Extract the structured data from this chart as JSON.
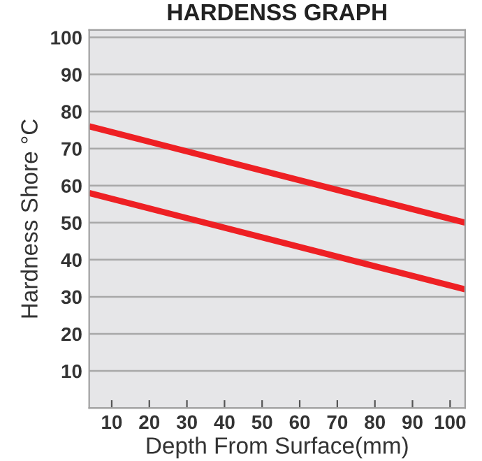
{
  "chart_data": {
    "type": "line",
    "title": "HARDENSS GRAPH",
    "xlabel": "Depth From Surface(mm)",
    "ylabel": "Hardness Shore °C",
    "x": [
      4,
      104
    ],
    "series": [
      {
        "color": "#ee2024",
        "values": [
          76,
          50
        ]
      },
      {
        "color": "#ee2024",
        "values": [
          58,
          32
        ]
      }
    ],
    "xlim": [
      4,
      104
    ],
    "ylim": [
      0,
      102
    ],
    "xticks": [
      10,
      20,
      30,
      40,
      50,
      60,
      70,
      80,
      90,
      100
    ],
    "yticks": [
      10,
      20,
      30,
      40,
      50,
      60,
      70,
      80,
      90,
      100
    ],
    "grid": "y",
    "legend": false,
    "marker": "none",
    "line_style": "solid"
  }
}
